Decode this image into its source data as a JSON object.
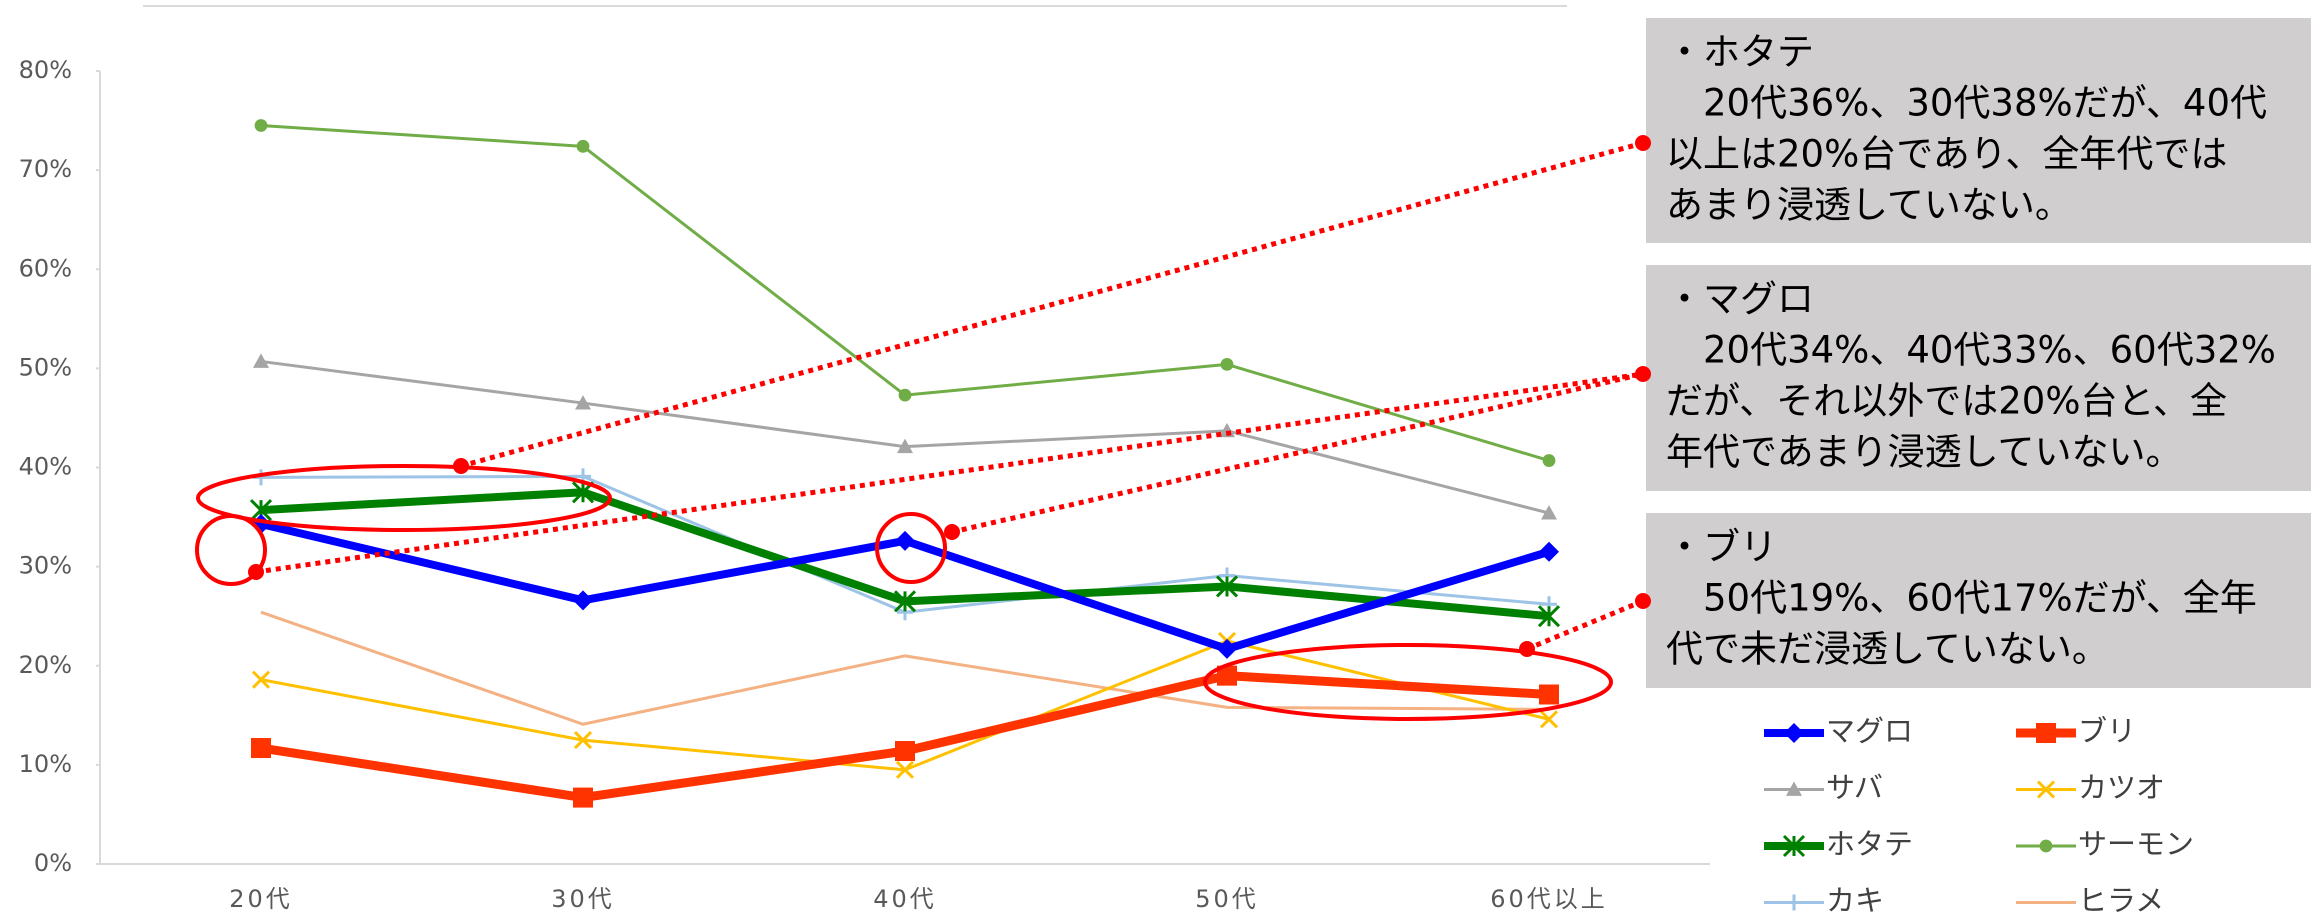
{
  "chart_data": {
    "type": "line",
    "categories": [
      "20代",
      "30代",
      "40代",
      "50代",
      "60代以上"
    ],
    "ylim": [
      0,
      80
    ],
    "yticks": [
      {
        "value": 0,
        "label": "0%"
      },
      {
        "value": 10,
        "label": "10%"
      },
      {
        "value": 20,
        "label": "20%"
      },
      {
        "value": 30,
        "label": "30%"
      },
      {
        "value": 40,
        "label": "40%"
      },
      {
        "value": 50,
        "label": "50%"
      },
      {
        "value": 60,
        "label": "60%"
      },
      {
        "value": 70,
        "label": "70%"
      },
      {
        "value": 80,
        "label": "80%"
      }
    ],
    "grid": false,
    "series": [
      {
        "name": "マグロ",
        "color": "#0000ff",
        "width": 8,
        "marker": "diamond",
        "values": [
          34.3,
          26.6,
          32.6,
          21.7,
          31.5
        ]
      },
      {
        "name": "ブリ",
        "color": "#ff3300",
        "width": 9,
        "marker": "square",
        "values": [
          11.7,
          6.7,
          11.4,
          19.0,
          17.1
        ]
      },
      {
        "name": "サバ",
        "color": "#a5a5a5",
        "width": 3,
        "marker": "triangle",
        "values": [
          50.7,
          46.5,
          42.1,
          43.7,
          35.4
        ]
      },
      {
        "name": "カツオ",
        "color": "#ffc000",
        "width": 3,
        "marker": "x",
        "values": [
          18.6,
          12.5,
          9.5,
          22.5,
          14.6
        ]
      },
      {
        "name": "ホタテ",
        "color": "#008000",
        "width": 8,
        "marker": "star",
        "values": [
          35.7,
          37.5,
          26.5,
          28.0,
          25.0
        ]
      },
      {
        "name": "サーモン",
        "color": "#70ad47",
        "width": 3,
        "marker": "circle",
        "values": [
          74.5,
          72.4,
          47.3,
          50.4,
          40.7
        ]
      },
      {
        "name": "カキ",
        "color": "#9dc3e6",
        "width": 3,
        "marker": "plus",
        "values": [
          39.0,
          39.1,
          25.4,
          29.1,
          26.2
        ]
      },
      {
        "name": "ヒラメ",
        "color": "#f4b183",
        "width": 3,
        "marker": "none",
        "values": [
          25.4,
          14.1,
          21.0,
          15.8,
          15.6
        ]
      }
    ],
    "annotations": [
      {
        "lines": [
          "・ホタテ",
          "　20代36%、30代38%だが、40代",
          "以上は20%台であり、全年代では",
          "あまり浸透していない。"
        ]
      },
      {
        "lines": [
          "・マグロ",
          "　20代34%、40代33%、60代32%",
          "だが、それ以外では20%台と、全",
          "年代であまり浸透していない。"
        ]
      },
      {
        "lines": [
          "・ブリ",
          "　50代19%、60代17%だが、全年",
          "代で未だ浸透していない。"
        ]
      }
    ]
  }
}
